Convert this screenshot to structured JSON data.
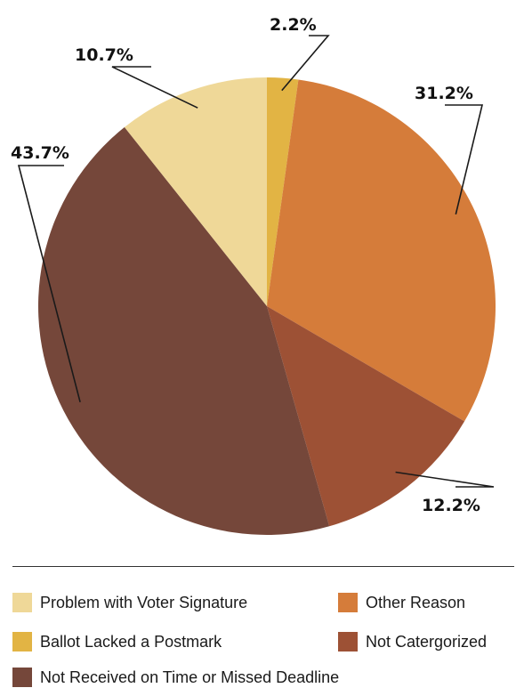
{
  "chart_data": {
    "type": "pie",
    "categories": [
      "Ballot Lacked a Postmark",
      "Other Reason",
      "Not Catergorized",
      "Not Received on Time or Missed Deadline",
      "Problem with Voter Signature"
    ],
    "values": [
      2.2,
      31.2,
      12.2,
      43.7,
      10.7
    ],
    "labels": [
      "2.2%",
      "31.2%",
      "12.2%",
      "43.7%",
      "10.7%"
    ],
    "colors": [
      "#e2b444",
      "#d57c3a",
      "#9d5135",
      "#75473a",
      "#efd898"
    ],
    "start_angle_deg": 0,
    "direction": "clockwise",
    "legend_position": "bottom"
  },
  "legend": [
    {
      "label": "Problem with Voter Signature",
      "color": "#efd898"
    },
    {
      "label": "Other Reason",
      "color": "#d57c3a"
    },
    {
      "label": "Ballot Lacked a Postmark",
      "color": "#e2b444"
    },
    {
      "label": "Not Catergorized",
      "color": "#9d5135"
    },
    {
      "label": "Not Received on Time or Missed Deadline",
      "color": "#75473a"
    }
  ]
}
